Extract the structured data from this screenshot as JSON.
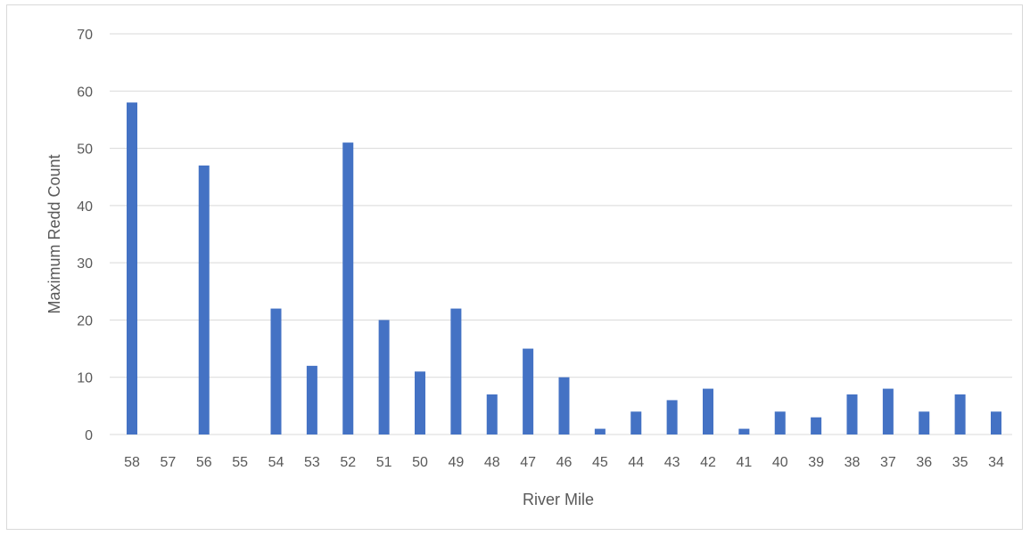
{
  "chart_data": {
    "type": "bar",
    "title": "",
    "xlabel": "River Mile",
    "ylabel": "Maximum Redd Count",
    "ylim": [
      0,
      70
    ],
    "yticks": [
      0,
      10,
      20,
      30,
      40,
      50,
      60,
      70
    ],
    "grid": true,
    "legend": "none",
    "bar_color": "#4472c4",
    "categories": [
      "58",
      "57",
      "56",
      "55",
      "54",
      "53",
      "52",
      "51",
      "50",
      "49",
      "48",
      "47",
      "46",
      "45",
      "44",
      "43",
      "42",
      "41",
      "40",
      "39",
      "38",
      "37",
      "36",
      "35",
      "34"
    ],
    "values": [
      58,
      0,
      47,
      0,
      22,
      12,
      51,
      20,
      11,
      22,
      7,
      15,
      10,
      1,
      4,
      6,
      8,
      1,
      4,
      3,
      7,
      8,
      4,
      7,
      4
    ]
  }
}
